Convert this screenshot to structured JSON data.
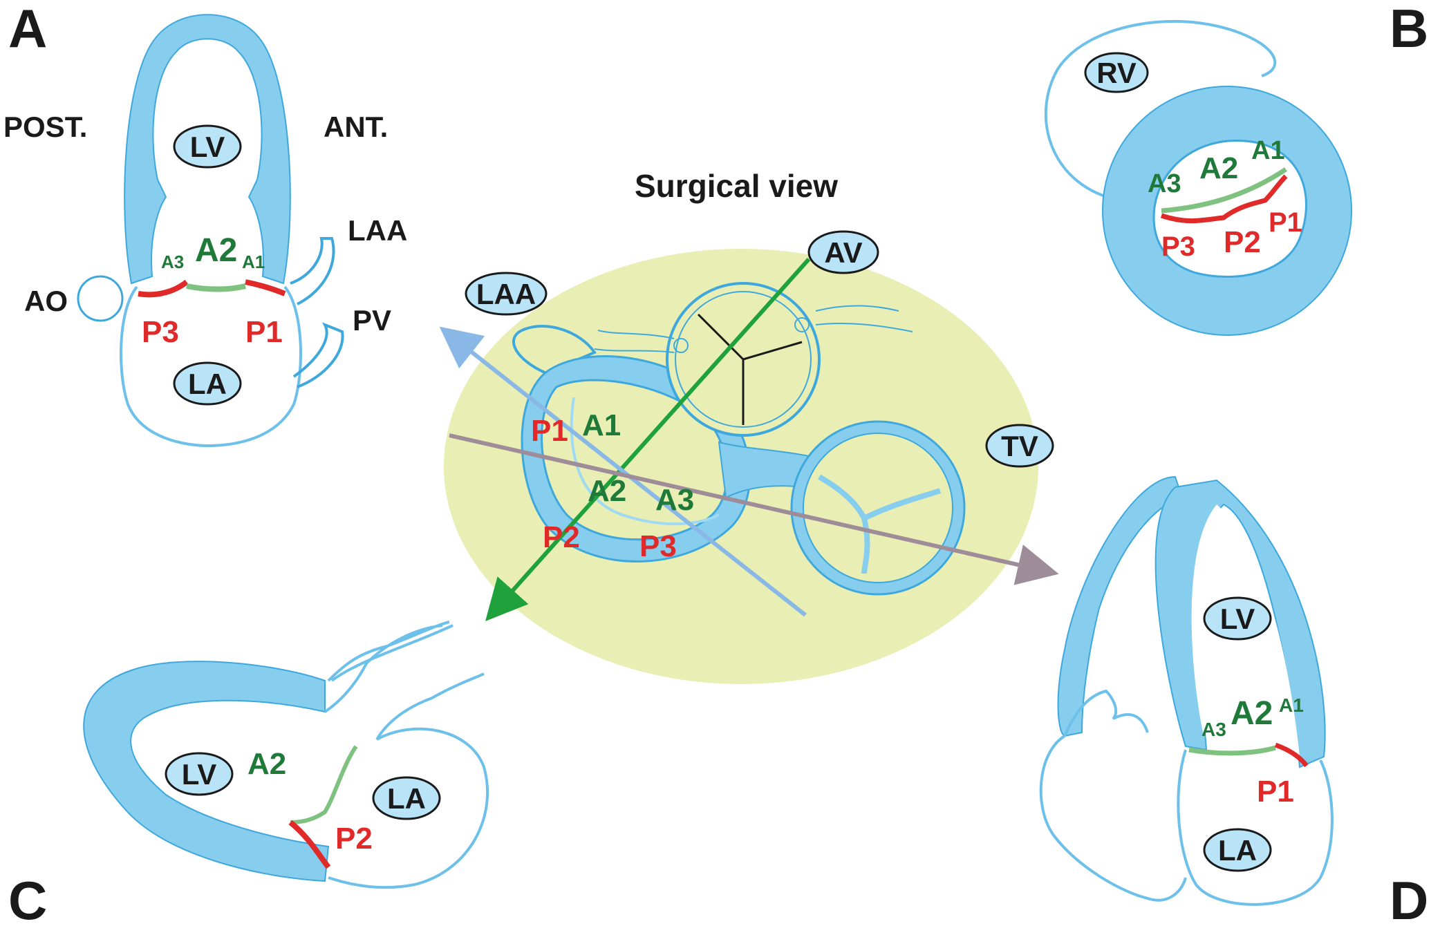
{
  "panels": {
    "a": {
      "letter": "A",
      "post": "POST.",
      "ant": "ANT.",
      "lv": "LV",
      "la": "LA",
      "laa": "LAA",
      "pv": "PV",
      "ao": "AO",
      "a1": "A1",
      "a2": "A2",
      "a3": "A3",
      "p1": "P1",
      "p3": "P3"
    },
    "b": {
      "letter": "B",
      "rv": "RV",
      "a1": "A1",
      "a2": "A2",
      "a3": "A3",
      "p1": "P1",
      "p2": "P2",
      "p3": "P3"
    },
    "c": {
      "letter": "C",
      "lv": "LV",
      "la": "LA",
      "a2": "A2",
      "p2": "P2"
    },
    "d": {
      "letter": "D",
      "lv": "LV",
      "la": "LA",
      "a1": "A1",
      "a2": "A2",
      "a3": "A3",
      "p1": "P1"
    }
  },
  "center": {
    "title": "Surgical view",
    "av": "AV",
    "laa": "LAA",
    "tv": "TV",
    "a1": "A1",
    "a2": "A2",
    "a3": "A3",
    "p1": "P1",
    "p2": "P2",
    "p3": "P3"
  },
  "colors": {
    "tissue": "#86cdee",
    "anterior": "#1f7a3a",
    "posterior": "#e02a2a",
    "background_ellipse": "#e9efb4",
    "arrow_green": "#1fa23c",
    "arrow_blue": "#8ab8e6",
    "arrow_mauve": "#9e8c98"
  }
}
